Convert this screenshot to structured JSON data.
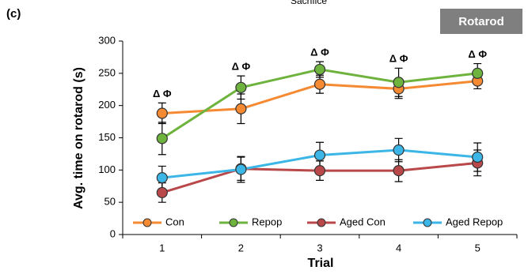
{
  "chart_data": {
    "type": "line",
    "panel_label": "(c)",
    "top_text": "Sacrifice",
    "badge": "Rotarod",
    "x_label": "Trial",
    "y_label": "Avg. time on rotarod (s)",
    "categories": [
      "1",
      "2",
      "3",
      "4",
      "5"
    ],
    "series": [
      {
        "name": "Con",
        "color": "#f58a33",
        "values": [
          188,
          195,
          233,
          226,
          238
        ],
        "errors": [
          16,
          23,
          14,
          15,
          12
        ]
      },
      {
        "name": "Repop",
        "color": "#6fb33f",
        "values": [
          149,
          228,
          256,
          236,
          250
        ],
        "errors": [
          25,
          18,
          12,
          22,
          15
        ]
      },
      {
        "name": "Aged Con",
        "color": "#b9484a",
        "values": [
          65,
          102,
          99,
          99,
          111
        ],
        "errors": [
          15,
          18,
          15,
          17,
          20
        ]
      },
      {
        "name": "Aged Repop",
        "color": "#3bb6e6",
        "values": [
          88,
          101,
          123,
          131,
          120
        ],
        "errors": [
          18,
          20,
          20,
          18,
          22
        ]
      }
    ],
    "annotations": [
      "Δ Φ",
      "Δ Φ",
      "Δ Φ",
      "Δ Φ",
      "Δ Φ"
    ],
    "ylim": [
      0,
      300
    ],
    "yticks": [
      0,
      50,
      100,
      150,
      200,
      250,
      300
    ],
    "legend": "bottom"
  }
}
